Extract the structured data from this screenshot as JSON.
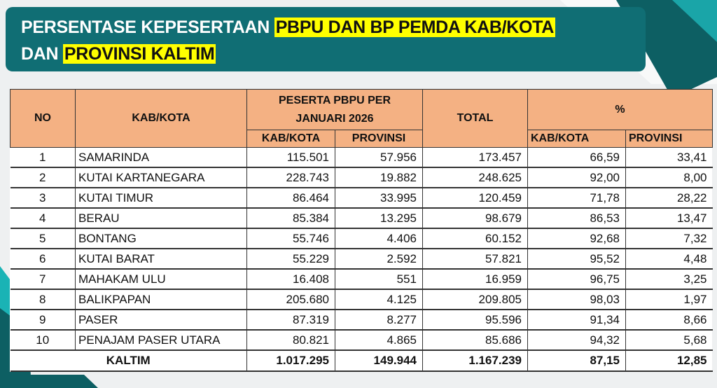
{
  "title": {
    "line1_plain": "PERSENTASE KEPESERTAAN ",
    "line1_highlight": "PBPU DAN BP PEMDA KAB/KOTA",
    "line2_plain": "DAN ",
    "line2_highlight": "PROVINSI KALTIM"
  },
  "colors": {
    "title_bg": "#106e74",
    "highlight": "#ffff00",
    "header_bg": "#f4b183"
  },
  "table": {
    "headers": {
      "no": "NO",
      "kab_kota": "KAB/KOTA",
      "peserta": "PESERTA PBPU PER JANUARI 2026",
      "total": "TOTAL",
      "percent": "%",
      "sub_kab_kota": "KAB/KOTA",
      "sub_provinsi": "PROVINSI",
      "pct_kab_kota": "KAB/KOTA",
      "pct_provinsi": "PROVINSI"
    },
    "rows": [
      {
        "no": "1",
        "name": "SAMARINDA",
        "kab": "115.501",
        "prov": "57.956",
        "total": "173.457",
        "pct_kab": "66,59",
        "pct_prov": "33,41"
      },
      {
        "no": "2",
        "name": "KUTAI KARTANEGARA",
        "kab": "228.743",
        "prov": "19.882",
        "total": "248.625",
        "pct_kab": "92,00",
        "pct_prov": "8,00"
      },
      {
        "no": "3",
        "name": "KUTAI TIMUR",
        "kab": "86.464",
        "prov": "33.995",
        "total": "120.459",
        "pct_kab": "71,78",
        "pct_prov": "28,22"
      },
      {
        "no": "4",
        "name": "BERAU",
        "kab": "85.384",
        "prov": "13.295",
        "total": "98.679",
        "pct_kab": "86,53",
        "pct_prov": "13,47"
      },
      {
        "no": "5",
        "name": "BONTANG",
        "kab": "55.746",
        "prov": "4.406",
        "total": "60.152",
        "pct_kab": "92,68",
        "pct_prov": "7,32"
      },
      {
        "no": "6",
        "name": "KUTAI BARAT",
        "kab": "55.229",
        "prov": "2.592",
        "total": "57.821",
        "pct_kab": "95,52",
        "pct_prov": "4,48"
      },
      {
        "no": "7",
        "name": "MAHAKAM ULU",
        "kab": "16.408",
        "prov": "551",
        "total": "16.959",
        "pct_kab": "96,75",
        "pct_prov": "3,25"
      },
      {
        "no": "8",
        "name": "BALIKPAPAN",
        "kab": "205.680",
        "prov": "4.125",
        "total": "209.805",
        "pct_kab": "98,03",
        "pct_prov": "1,97"
      },
      {
        "no": "9",
        "name": "PASER",
        "kab": "87.319",
        "prov": "8.277",
        "total": "95.596",
        "pct_kab": "91,34",
        "pct_prov": "8,66"
      },
      {
        "no": "10",
        "name": "PENAJAM PASER UTARA",
        "kab": "80.821",
        "prov": "4.865",
        "total": "85.686",
        "pct_kab": "94,32",
        "pct_prov": "5,68"
      }
    ],
    "total_row": {
      "label": "KALTIM",
      "kab": "1.017.295",
      "prov": "149.944",
      "total": "1.167.239",
      "pct_kab": "87,15",
      "pct_prov": "12,85"
    }
  }
}
